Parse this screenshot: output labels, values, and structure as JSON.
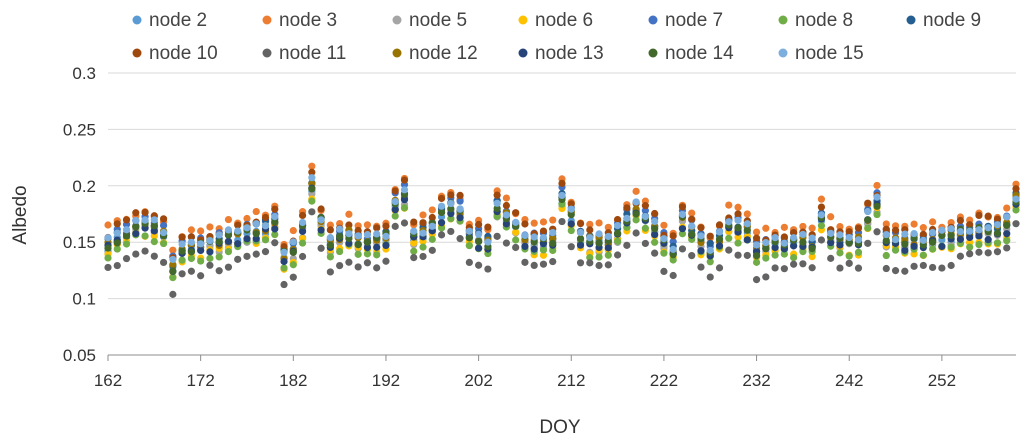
{
  "chart_data": {
    "type": "scatter",
    "title": "",
    "xlabel": "DOY",
    "ylabel": "Albedo",
    "xlim": [
      162,
      260
    ],
    "ylim": [
      0.05,
      0.3
    ],
    "xticks": [
      162,
      172,
      182,
      192,
      202,
      212,
      222,
      232,
      242,
      252
    ],
    "yticks": [
      0.05,
      0.1,
      0.15,
      0.2,
      0.25,
      0.3
    ],
    "ytick_labels": [
      "0.05",
      "0.1",
      "0.15",
      "0.2",
      "0.25",
      "0.3"
    ],
    "grid": "horizontal",
    "legend_position": "top",
    "x": [
      162,
      163,
      164,
      165,
      166,
      167,
      168,
      169,
      170,
      171,
      172,
      173,
      174,
      175,
      176,
      177,
      178,
      179,
      180,
      181,
      182,
      183,
      184,
      185,
      186,
      187,
      188,
      189,
      190,
      191,
      192,
      193,
      194,
      195,
      196,
      197,
      198,
      199,
      200,
      201,
      202,
      203,
      204,
      205,
      206,
      207,
      208,
      209,
      210,
      211,
      212,
      213,
      214,
      215,
      216,
      217,
      218,
      219,
      220,
      221,
      222,
      223,
      224,
      225,
      226,
      227,
      228,
      229,
      230,
      231,
      232,
      233,
      234,
      235,
      236,
      237,
      238,
      239,
      240,
      241,
      242,
      243,
      244,
      245,
      246,
      247,
      248,
      249,
      250,
      251,
      252,
      253,
      254,
      255,
      256,
      257,
      258,
      259,
      260
    ],
    "base_albedo": [
      0.148,
      0.153,
      0.158,
      0.163,
      0.165,
      0.162,
      0.158,
      0.128,
      0.143,
      0.145,
      0.146,
      0.148,
      0.15,
      0.153,
      0.155,
      0.158,
      0.16,
      0.163,
      0.168,
      0.138,
      0.143,
      0.162,
      0.2,
      0.168,
      0.148,
      0.155,
      0.157,
      0.15,
      0.15,
      0.152,
      0.155,
      0.185,
      0.192,
      0.155,
      0.158,
      0.163,
      0.175,
      0.18,
      0.178,
      0.155,
      0.152,
      0.15,
      0.18,
      0.172,
      0.165,
      0.153,
      0.15,
      0.15,
      0.152,
      0.19,
      0.172,
      0.155,
      0.15,
      0.15,
      0.15,
      0.158,
      0.17,
      0.178,
      0.172,
      0.162,
      0.15,
      0.142,
      0.17,
      0.16,
      0.15,
      0.142,
      0.152,
      0.165,
      0.163,
      0.16,
      0.142,
      0.145,
      0.147,
      0.148,
      0.15,
      0.15,
      0.148,
      0.172,
      0.155,
      0.15,
      0.15,
      0.15,
      0.172,
      0.185,
      0.152,
      0.15,
      0.15,
      0.15,
      0.15,
      0.152,
      0.153,
      0.155,
      0.158,
      0.158,
      0.16,
      0.16,
      0.16,
      0.165,
      0.188
    ],
    "series": [
      {
        "name": "node 2",
        "color": "#5B9BD5",
        "offset": -0.002
      },
      {
        "name": "node 3",
        "color": "#ED7D31",
        "offset": 0.014
      },
      {
        "name": "node 5",
        "color": "#A5A5A5",
        "offset": -0.005
      },
      {
        "name": "node 6",
        "color": "#FFC000",
        "offset": -0.008
      },
      {
        "name": "node 7",
        "color": "#4472C4",
        "offset": 0.006
      },
      {
        "name": "node 8",
        "color": "#70AD47",
        "offset": -0.01
      },
      {
        "name": "node 9",
        "color": "#255E91",
        "offset": 0.003
      },
      {
        "name": "node 10",
        "color": "#9E480E",
        "offset": 0.01
      },
      {
        "name": "node 11",
        "color": "#636363",
        "offset": -0.022
      },
      {
        "name": "node 12",
        "color": "#997300",
        "offset": 0.001
      },
      {
        "name": "node 13",
        "color": "#264478",
        "offset": -0.004
      },
      {
        "name": "node 14",
        "color": "#43682B",
        "offset": 0.0
      },
      {
        "name": "node 15",
        "color": "#7CAFDD",
        "offset": 0.004
      }
    ]
  }
}
